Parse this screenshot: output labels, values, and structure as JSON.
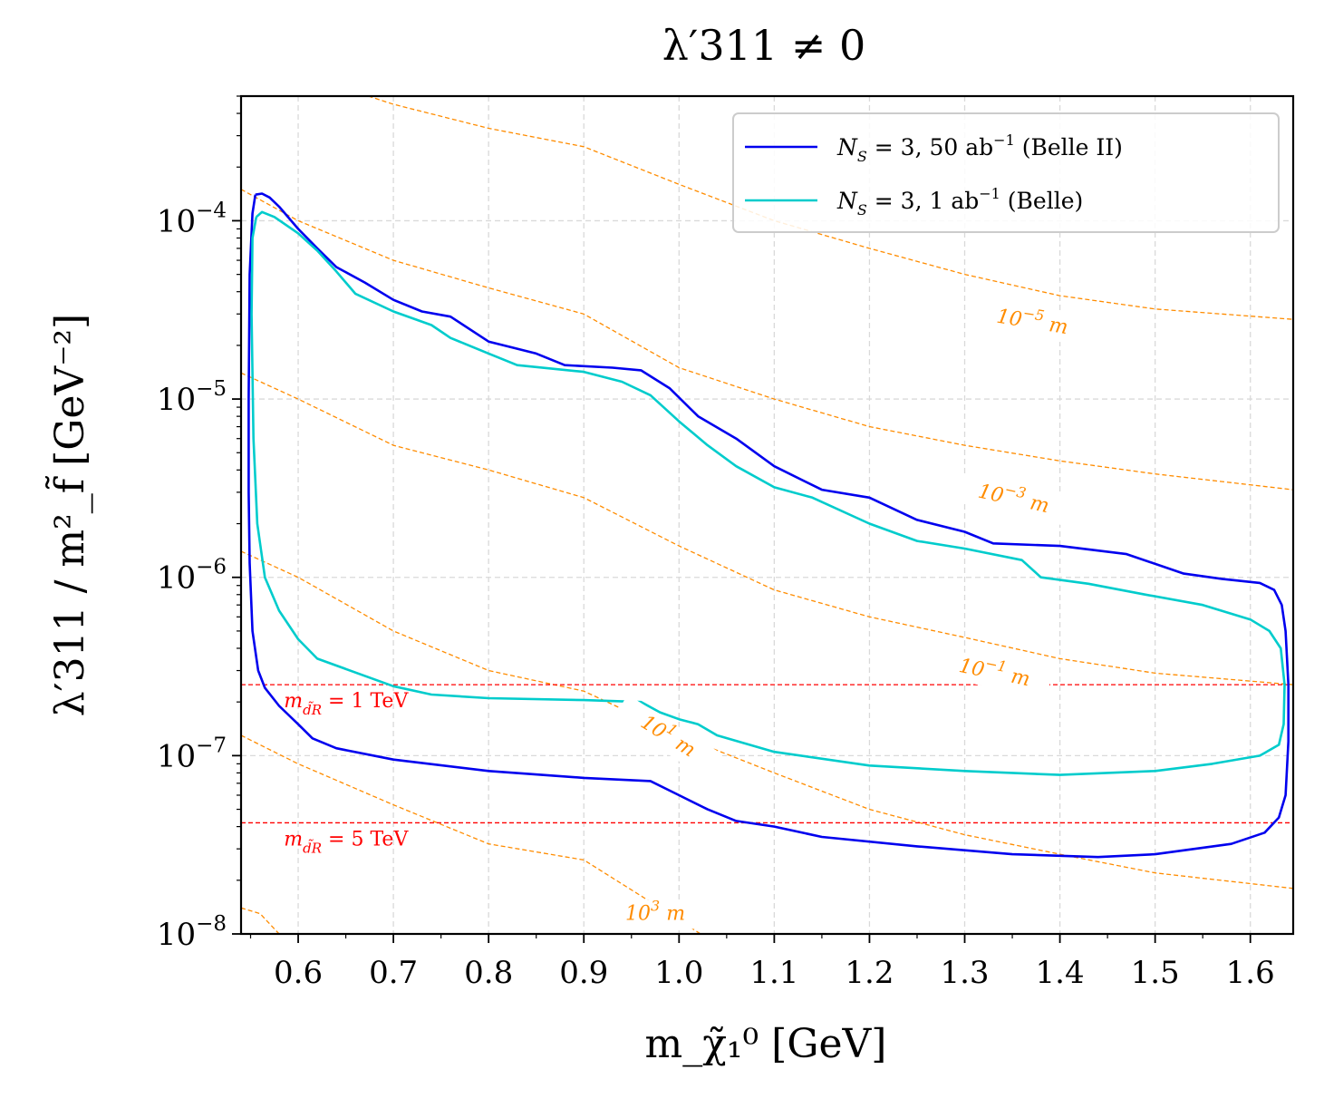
{
  "chart_data": {
    "type": "line",
    "title": "λ′311 ≠ 0",
    "xlabel": "m_χ̃₁⁰ [GeV]",
    "ylabel": "λ′311 / m²_f̃ [GeV⁻²]",
    "xlim": [
      0.54,
      1.645
    ],
    "ylim": [
      1e-08,
      0.0005
    ],
    "yscale": "log",
    "grid": true,
    "x_ticks": [
      "0.6",
      "0.7",
      "0.8",
      "0.9",
      "1.0",
      "1.1",
      "1.2",
      "1.3",
      "1.4",
      "1.5",
      "1.6"
    ],
    "y_ticks": [
      {
        "base": "10",
        "exp": "−4",
        "value": 0.0001
      },
      {
        "base": "10",
        "exp": "−5",
        "value": 1e-05
      },
      {
        "base": "10",
        "exp": "−6",
        "value": 1e-06
      },
      {
        "base": "10",
        "exp": "−7",
        "value": 1e-07
      },
      {
        "base": "10",
        "exp": "−8",
        "value": 1e-08
      }
    ],
    "legend": {
      "position": "top-right",
      "entries": [
        {
          "series": "belle2",
          "math": "N",
          "sub": "S",
          "text": " =   3, 50 ab",
          "sup": "−1",
          "tail": " (Belle II)"
        },
        {
          "series": "belle",
          "math": "N",
          "sub": "S",
          "text": " =   3, 1 ab",
          "sup": "−1",
          "tail": " (Belle)"
        }
      ]
    },
    "series": [
      {
        "name": "N_S = 3, 50 ab^-1 (Belle II)",
        "key": "belle2",
        "color": "#0000ee",
        "points": [
          [
            0.555,
            0.00014
          ],
          [
            0.562,
            0.000142
          ],
          [
            0.57,
            0.000135
          ],
          [
            0.58,
            0.00012
          ],
          [
            0.6,
            9e-05
          ],
          [
            0.62,
            7e-05
          ],
          [
            0.64,
            5.5e-05
          ],
          [
            0.67,
            4.5e-05
          ],
          [
            0.7,
            3.6e-05
          ],
          [
            0.73,
            3.1e-05
          ],
          [
            0.76,
            2.9e-05
          ],
          [
            0.8,
            2.1e-05
          ],
          [
            0.85,
            1.8e-05
          ],
          [
            0.88,
            1.55e-05
          ],
          [
            0.93,
            1.5e-05
          ],
          [
            0.96,
            1.45e-05
          ],
          [
            0.99,
            1.15e-05
          ],
          [
            1.02,
            8e-06
          ],
          [
            1.06,
            6e-06
          ],
          [
            1.1,
            4.2e-06
          ],
          [
            1.15,
            3.1e-06
          ],
          [
            1.2,
            2.8e-06
          ],
          [
            1.25,
            2.1e-06
          ],
          [
            1.3,
            1.8e-06
          ],
          [
            1.33,
            1.55e-06
          ],
          [
            1.4,
            1.5e-06
          ],
          [
            1.47,
            1.35e-06
          ],
          [
            1.53,
            1.05e-06
          ],
          [
            1.57,
            9.8e-07
          ],
          [
            1.61,
            9.3e-07
          ],
          [
            1.625,
            8.5e-07
          ],
          [
            1.633,
            7e-07
          ],
          [
            1.637,
            5e-07
          ],
          [
            1.64,
            2.5e-07
          ],
          [
            1.64,
            1.2e-07
          ],
          [
            1.637,
            6e-08
          ],
          [
            1.63,
            4.5e-08
          ],
          [
            1.615,
            3.7e-08
          ],
          [
            1.58,
            3.2e-08
          ],
          [
            1.5,
            2.8e-08
          ],
          [
            1.44,
            2.7e-08
          ],
          [
            1.35,
            2.8e-08
          ],
          [
            1.25,
            3.1e-08
          ],
          [
            1.15,
            3.5e-08
          ],
          [
            1.1,
            4e-08
          ],
          [
            1.06,
            4.3e-08
          ],
          [
            1.03,
            5e-08
          ],
          [
            1.0,
            6e-08
          ],
          [
            0.97,
            7.2e-08
          ],
          [
            0.9,
            7.5e-08
          ],
          [
            0.8,
            8.2e-08
          ],
          [
            0.7,
            9.5e-08
          ],
          [
            0.64,
            1.1e-07
          ],
          [
            0.615,
            1.25e-07
          ],
          [
            0.6,
            1.5e-07
          ],
          [
            0.58,
            1.9e-07
          ],
          [
            0.565,
            2.4e-07
          ],
          [
            0.558,
            3e-07
          ],
          [
            0.552,
            5e-07
          ],
          [
            0.549,
            1.2e-06
          ],
          [
            0.548,
            3e-06
          ],
          [
            0.548,
            1e-05
          ],
          [
            0.549,
            5e-05
          ],
          [
            0.552,
            0.00011
          ],
          [
            0.555,
            0.00014
          ]
        ]
      },
      {
        "name": "N_S = 3, 1 ab^-1 (Belle)",
        "key": "belle",
        "color": "#00cccc",
        "points": [
          [
            0.556,
            0.000105
          ],
          [
            0.562,
            0.000112
          ],
          [
            0.575,
            0.000105
          ],
          [
            0.6,
            8.5e-05
          ],
          [
            0.62,
            6.8e-05
          ],
          [
            0.64,
            5.2e-05
          ],
          [
            0.66,
            3.9e-05
          ],
          [
            0.7,
            3.1e-05
          ],
          [
            0.74,
            2.6e-05
          ],
          [
            0.76,
            2.2e-05
          ],
          [
            0.8,
            1.8e-05
          ],
          [
            0.83,
            1.55e-05
          ],
          [
            0.9,
            1.42e-05
          ],
          [
            0.94,
            1.25e-05
          ],
          [
            0.97,
            1.05e-05
          ],
          [
            1.0,
            7.5e-06
          ],
          [
            1.03,
            5.5e-06
          ],
          [
            1.06,
            4.2e-06
          ],
          [
            1.1,
            3.2e-06
          ],
          [
            1.14,
            2.8e-06
          ],
          [
            1.2,
            2e-06
          ],
          [
            1.25,
            1.6e-06
          ],
          [
            1.3,
            1.45e-06
          ],
          [
            1.36,
            1.25e-06
          ],
          [
            1.38,
            1e-06
          ],
          [
            1.43,
            9.2e-07
          ],
          [
            1.49,
            8e-07
          ],
          [
            1.55,
            7e-07
          ],
          [
            1.6,
            5.8e-07
          ],
          [
            1.62,
            5e-07
          ],
          [
            1.632,
            4e-07
          ],
          [
            1.636,
            2.5e-07
          ],
          [
            1.635,
            1.5e-07
          ],
          [
            1.63,
            1.15e-07
          ],
          [
            1.61,
            1e-07
          ],
          [
            1.56,
            9e-08
          ],
          [
            1.5,
            8.2e-08
          ],
          [
            1.4,
            7.8e-08
          ],
          [
            1.3,
            8.2e-08
          ],
          [
            1.2,
            8.8e-08
          ],
          [
            1.1,
            1.05e-07
          ],
          [
            1.04,
            1.3e-07
          ],
          [
            1.02,
            1.5e-07
          ],
          [
            1.0,
            1.6e-07
          ],
          [
            0.98,
            1.75e-07
          ],
          [
            0.96,
            2e-07
          ],
          [
            0.9,
            2.05e-07
          ],
          [
            0.8,
            2.1e-07
          ],
          [
            0.74,
            2.2e-07
          ],
          [
            0.7,
            2.45e-07
          ],
          [
            0.62,
            3.5e-07
          ],
          [
            0.6,
            4.5e-07
          ],
          [
            0.58,
            6.5e-07
          ],
          [
            0.565,
            1e-06
          ],
          [
            0.557,
            2e-06
          ],
          [
            0.553,
            6e-06
          ],
          [
            0.551,
            3e-05
          ],
          [
            0.552,
            8e-05
          ],
          [
            0.556,
            0.000105
          ]
        ]
      }
    ],
    "contours": [
      {
        "label_base": "10",
        "label_exp": "−5",
        "label_unit": " m",
        "label_at": [
          1.37,
          2.5e-05
        ],
        "points": [
          [
            0.54,
            0.00015
          ],
          [
            0.6,
            0.0001
          ],
          [
            0.7,
            6e-05
          ],
          [
            0.8,
            4.2e-05
          ],
          [
            0.9,
            3e-05
          ],
          [
            1.0,
            1.5e-05
          ],
          [
            1.1,
            1e-05
          ],
          [
            1.2,
            7e-06
          ],
          [
            1.3,
            5.5e-06
          ],
          [
            1.4,
            4.5e-06
          ],
          [
            1.5,
            3.8e-06
          ],
          [
            1.645,
            3.1e-06
          ]
        ]
      },
      {
        "label_base": "10",
        "label_exp": "−3",
        "label_unit": " m",
        "label_at": [
          1.35,
          2.55e-06
        ],
        "points": [
          [
            0.54,
            1.4e-05
          ],
          [
            0.6,
            1e-05
          ],
          [
            0.7,
            5.5e-06
          ],
          [
            0.8,
            4e-06
          ],
          [
            0.9,
            2.8e-06
          ],
          [
            1.0,
            1.5e-06
          ],
          [
            1.1,
            8.5e-07
          ],
          [
            1.2,
            6e-07
          ],
          [
            1.3,
            4.6e-07
          ],
          [
            1.4,
            3.5e-07
          ],
          [
            1.5,
            2.9e-07
          ],
          [
            1.645,
            2.5e-07
          ]
        ]
      },
      {
        "label_base": "10",
        "label_exp": "−1",
        "label_unit": " m",
        "label_at": [
          1.33,
          2.7e-07
        ],
        "points": [
          [
            0.54,
            1.4e-06
          ],
          [
            0.6,
            1e-06
          ],
          [
            0.7,
            5e-07
          ],
          [
            0.8,
            3e-07
          ],
          [
            0.9,
            2.3e-07
          ],
          [
            1.0,
            1.3e-07
          ],
          [
            1.1,
            8e-08
          ],
          [
            1.2,
            5e-08
          ],
          [
            1.3,
            3.6e-08
          ],
          [
            1.4,
            2.8e-08
          ],
          [
            1.5,
            2.2e-08
          ],
          [
            1.645,
            1.8e-08
          ]
        ]
      },
      {
        "label_base": "10",
        "label_exp": "1",
        "label_unit": " m",
        "label_at": [
          0.985,
          1.2e-07
        ],
        "points": [
          [
            0.54,
            1.3e-07
          ],
          [
            0.6,
            9e-08
          ],
          [
            0.7,
            5.3e-08
          ],
          [
            0.8,
            3.2e-08
          ],
          [
            0.9,
            2.6e-08
          ],
          [
            1.0,
            1.2e-08
          ],
          [
            1.05,
            8e-09
          ]
        ]
      },
      {
        "label_base": "10",
        "label_exp": "3",
        "label_unit": " m",
        "label_at": [
          0.975,
          1.2e-08
        ],
        "points": [
          [
            0.54,
            1.4e-08
          ],
          [
            0.56,
            1.3e-08
          ],
          [
            0.58,
            1e-08
          ],
          [
            0.6,
            8e-09
          ]
        ]
      },
      {
        "label_base": "",
        "label_exp": "",
        "label_unit": "",
        "label_at": null,
        "points": [
          [
            0.54,
            0.0015
          ],
          [
            0.59,
            0.0007
          ],
          [
            0.7,
            0.00045
          ],
          [
            0.8,
            0.00033
          ],
          [
            0.9,
            0.00026
          ],
          [
            1.0,
            0.00016
          ],
          [
            1.1,
            0.0001
          ],
          [
            1.2,
            7e-05
          ],
          [
            1.3,
            5e-05
          ],
          [
            1.4,
            3.8e-05
          ],
          [
            1.5,
            3.2e-05
          ],
          [
            1.645,
            2.8e-05
          ]
        ]
      }
    ],
    "contour_color": "#ff8c00",
    "hlines": [
      {
        "y": 2.5e-07,
        "label_main": "m",
        "label_sub": "d̃R",
        "label_rest": " = 1 TeV",
        "color": "#ff0000"
      },
      {
        "y": 4.2e-08,
        "label_main": "m",
        "label_sub": "d̃R",
        "label_rest": " = 5 TeV",
        "color": "#ff0000"
      }
    ]
  }
}
